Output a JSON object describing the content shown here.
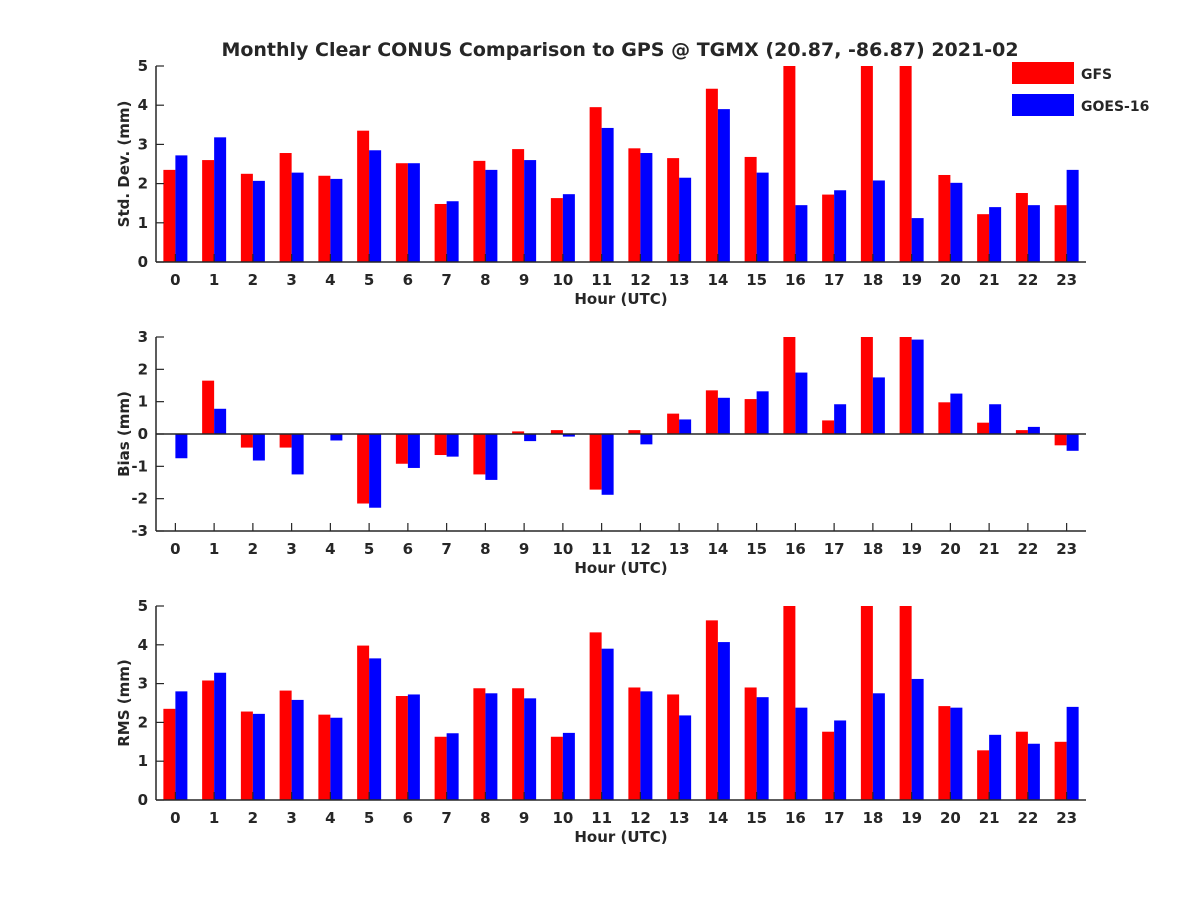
{
  "title": "Monthly Clear CONUS Comparison to GPS @ TGMX (20.87, -86.87) 2021-02",
  "legend": [
    {
      "name": "GFS",
      "color": "#ff0000"
    },
    {
      "name": "GOES-16",
      "color": "#0000ff"
    }
  ],
  "chart_data": [
    {
      "type": "bar",
      "title": "Monthly Clear CONUS Comparison to GPS @ TGMX (20.87, -86.87) 2021-02",
      "xlabel": "Hour (UTC)",
      "ylabel": "Std. Dev. (mm)",
      "ylim": [
        0,
        5
      ],
      "yticks": [
        0,
        1,
        2,
        3,
        4,
        5
      ],
      "categories": [
        "0",
        "1",
        "2",
        "3",
        "4",
        "5",
        "6",
        "7",
        "8",
        "9",
        "10",
        "11",
        "12",
        "13",
        "14",
        "15",
        "16",
        "17",
        "18",
        "19",
        "20",
        "21",
        "22",
        "23"
      ],
      "series": [
        {
          "name": "GFS",
          "color": "#ff0000",
          "values": [
            2.35,
            2.6,
            2.25,
            2.78,
            2.2,
            3.35,
            2.52,
            1.48,
            2.58,
            2.88,
            1.63,
            3.95,
            2.9,
            2.65,
            4.42,
            2.68,
            5.0,
            1.72,
            5.0,
            5.0,
            2.22,
            1.22,
            1.76,
            1.45
          ]
        },
        {
          "name": "GOES-16",
          "color": "#0000ff",
          "values": [
            2.72,
            3.18,
            2.07,
            2.28,
            2.12,
            2.85,
            2.52,
            1.55,
            2.35,
            2.6,
            1.73,
            3.42,
            2.78,
            2.15,
            3.9,
            2.28,
            1.45,
            1.83,
            2.08,
            1.12,
            2.02,
            1.4,
            1.45,
            2.35
          ]
        }
      ],
      "grid": false,
      "legend_position": "top-right"
    },
    {
      "type": "bar",
      "xlabel": "Hour (UTC)",
      "ylabel": "Bias (mm)",
      "ylim": [
        -3,
        3
      ],
      "yticks": [
        -3,
        -2,
        -1,
        0,
        1,
        2,
        3
      ],
      "categories": [
        "0",
        "1",
        "2",
        "3",
        "4",
        "5",
        "6",
        "7",
        "8",
        "9",
        "10",
        "11",
        "12",
        "13",
        "14",
        "15",
        "16",
        "17",
        "18",
        "19",
        "20",
        "21",
        "22",
        "23"
      ],
      "series": [
        {
          "name": "GFS",
          "color": "#ff0000",
          "values": [
            0.0,
            1.65,
            -0.42,
            -0.42,
            0.0,
            -2.15,
            -0.92,
            -0.65,
            -1.25,
            0.08,
            0.12,
            -1.72,
            0.12,
            0.63,
            1.35,
            1.08,
            3.0,
            0.42,
            3.0,
            3.0,
            0.98,
            0.35,
            0.12,
            -0.35
          ]
        },
        {
          "name": "GOES-16",
          "color": "#0000ff",
          "values": [
            -0.75,
            0.78,
            -0.82,
            -1.25,
            -0.2,
            -2.28,
            -1.05,
            -0.7,
            -1.42,
            -0.22,
            -0.08,
            -1.88,
            -0.32,
            0.45,
            1.12,
            1.32,
            1.9,
            0.92,
            1.75,
            2.92,
            1.25,
            0.92,
            0.22,
            -0.52
          ]
        }
      ],
      "grid": false
    },
    {
      "type": "bar",
      "xlabel": "Hour (UTC)",
      "ylabel": "RMS (mm)",
      "ylim": [
        0,
        5
      ],
      "yticks": [
        0,
        1,
        2,
        3,
        4,
        5
      ],
      "categories": [
        "0",
        "1",
        "2",
        "3",
        "4",
        "5",
        "6",
        "7",
        "8",
        "9",
        "10",
        "11",
        "12",
        "13",
        "14",
        "15",
        "16",
        "17",
        "18",
        "19",
        "20",
        "21",
        "22",
        "23"
      ],
      "series": [
        {
          "name": "GFS",
          "color": "#ff0000",
          "values": [
            2.35,
            3.08,
            2.28,
            2.82,
            2.2,
            3.98,
            2.68,
            1.63,
            2.88,
            2.88,
            1.63,
            4.32,
            2.9,
            2.72,
            4.63,
            2.9,
            5.0,
            1.76,
            5.0,
            5.0,
            2.42,
            1.28,
            1.76,
            1.5
          ]
        },
        {
          "name": "GOES-16",
          "color": "#0000ff",
          "values": [
            2.8,
            3.28,
            2.22,
            2.58,
            2.12,
            3.65,
            2.72,
            1.72,
            2.75,
            2.62,
            1.73,
            3.9,
            2.8,
            2.18,
            4.07,
            2.65,
            2.38,
            2.05,
            2.75,
            3.12,
            2.38,
            1.68,
            1.45,
            2.4
          ]
        }
      ],
      "grid": false
    }
  ]
}
